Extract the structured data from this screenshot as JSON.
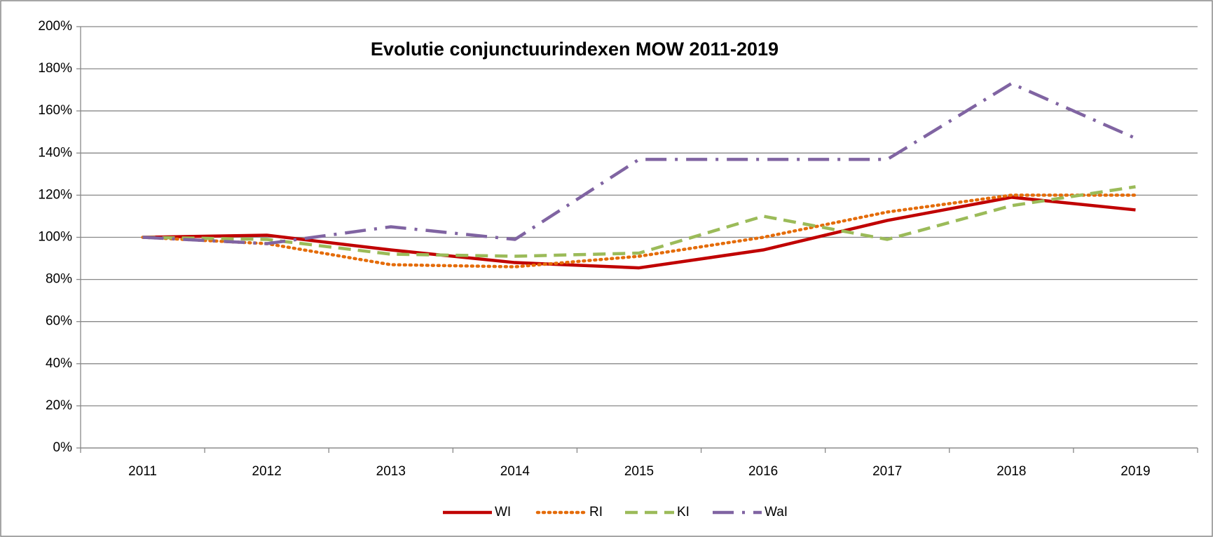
{
  "chart_data": {
    "type": "line",
    "title": "Evolutie conjunctuurindexen MOW 2011-2019",
    "categories": [
      "2011",
      "2012",
      "2013",
      "2014",
      "2015",
      "2016",
      "2017",
      "2018",
      "2019"
    ],
    "series": [
      {
        "name": "WI",
        "color": "#c00000",
        "dash": "solid",
        "values": [
          100,
          101,
          94,
          88,
          85.5,
          94,
          108,
          119,
          113
        ]
      },
      {
        "name": "RI",
        "color": "#e46c0a",
        "dash": "dotted",
        "values": [
          100,
          97,
          87,
          86,
          91,
          100,
          112,
          120,
          120
        ]
      },
      {
        "name": "KI",
        "color": "#9bbb59",
        "dash": "dashed",
        "values": [
          100,
          99,
          92,
          91,
          92.5,
          110,
          99,
          115,
          124
        ]
      },
      {
        "name": "WaI",
        "color": "#8064a2",
        "dash": "dashdot",
        "values": [
          100,
          97,
          105,
          99,
          137,
          137,
          137,
          173,
          147
        ]
      }
    ],
    "ylim": [
      0,
      200
    ],
    "yticks": [
      {
        "value": 0,
        "label": "0%"
      },
      {
        "value": 20,
        "label": "20%"
      },
      {
        "value": 40,
        "label": "40%"
      },
      {
        "value": 60,
        "label": "60%"
      },
      {
        "value": 80,
        "label": "80%"
      },
      {
        "value": 100,
        "label": "100%"
      },
      {
        "value": 120,
        "label": "120%"
      },
      {
        "value": 140,
        "label": "140%"
      },
      {
        "value": 160,
        "label": "160%"
      },
      {
        "value": 180,
        "label": "180%"
      },
      {
        "value": 200,
        "label": "200%"
      }
    ],
    "grid": true,
    "legend": "bottom"
  }
}
